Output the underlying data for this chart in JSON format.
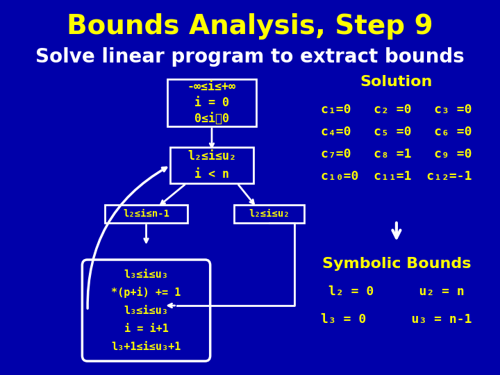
{
  "background_color": "#0000AA",
  "title": "Bounds Analysis, Step 9",
  "subtitle": "Solve linear program to extract bounds",
  "title_color": "#FFFF00",
  "subtitle_color": "#FFFFFF",
  "title_fontsize": 28,
  "subtitle_fontsize": 20,
  "box_bg": "#0000CC",
  "box_edge": "#FFFFFF",
  "box_text_color": "#FFFF00",
  "box1_text": [
    "-∞≤i≤+∞",
    "i = 0",
    "0≤i⁤0"
  ],
  "box2_text": [
    "l₂≤i≤u₂",
    "i < n"
  ],
  "box3_text": [
    "l₂≤i≤n-1"
  ],
  "box4_text": [
    "l₂≤i≤u₂"
  ],
  "box5_text": [
    "l₃≤i≤u₃",
    "*(p+i) += 1",
    "l₃≤i≤u₃",
    "i = i+1",
    "l₃+1≤i≤u₃+1"
  ],
  "solution_title": "Solution",
  "solution_lines": [
    "c₁=0   c₂ =0   c₃ =0",
    "c₄=0   c₅ =0   c₆ =0",
    "c₇=0   c₈ =1   c₉ =0",
    "c₁₀=0  c₁₁=1  c₁₂=-1"
  ],
  "symbolic_title": "Symbolic Bounds",
  "symbolic_lines": [
    "l₂ = 0      u₂ = n",
    "l₃ = 0      u₃ = n-1"
  ],
  "text_color_yellow": "#FFFF00",
  "text_color_white": "#FFFFFF"
}
